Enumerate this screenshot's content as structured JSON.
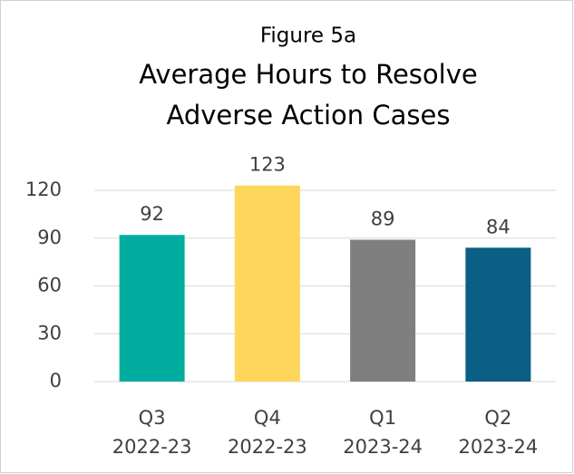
{
  "chart_data": {
    "type": "bar",
    "title": "Figure 5a",
    "subtitle": [
      "Average Hours to Resolve",
      "Adverse Action Cases"
    ],
    "categories": [
      [
        "Q3",
        "2022-23"
      ],
      [
        "Q4",
        "2022-23"
      ],
      [
        "Q1",
        "2023-24"
      ],
      [
        "Q2",
        "2023-24"
      ]
    ],
    "values": [
      92,
      123,
      89,
      84
    ],
    "colors": [
      "#00ad9f",
      "#ffd65c",
      "#7f7f7f",
      "#0b5f84"
    ],
    "ylim": [
      0,
      120
    ],
    "yticks": [
      0,
      30,
      60,
      90,
      120
    ],
    "grid": true
  }
}
